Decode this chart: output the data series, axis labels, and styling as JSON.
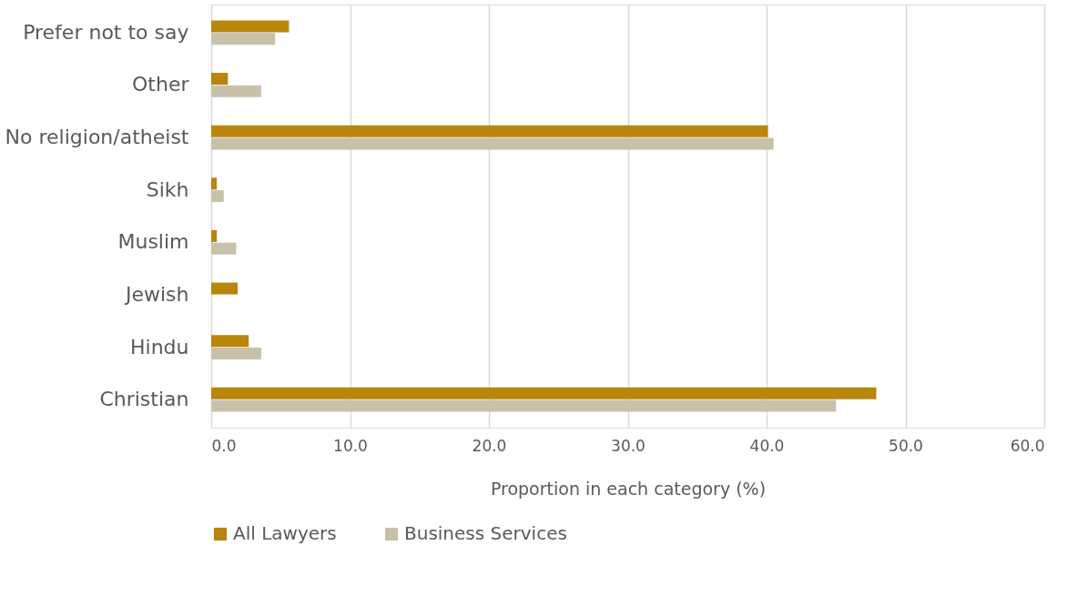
{
  "chart_data": {
    "type": "bar",
    "orientation": "horizontal",
    "xlabel": "Proportion in each category (%)",
    "categories": [
      "Prefer not to say",
      "Other",
      "No religion/atheist",
      "Sikh",
      "Muslim",
      "Jewish",
      "Hindu",
      "Christian"
    ],
    "series": [
      {
        "name": "All Lawyers",
        "color": "#b8860b",
        "values": [
          5.6,
          1.2,
          40.1,
          0.4,
          0.4,
          1.9,
          2.7,
          47.9
        ]
      },
      {
        "name": "Business Services",
        "color": "#c9c0aa",
        "values": [
          4.6,
          3.6,
          40.5,
          0.9,
          1.8,
          0,
          3.6,
          45.0
        ]
      }
    ],
    "xlim": [
      0,
      60
    ],
    "xticks": [
      {
        "value": 0,
        "label": "0.0"
      },
      {
        "value": 10,
        "label": "10.0"
      },
      {
        "value": 20,
        "label": "20.0"
      },
      {
        "value": 30,
        "label": "30.0"
      },
      {
        "value": 40,
        "label": "40.0"
      },
      {
        "value": 50,
        "label": "50.0"
      },
      {
        "value": 60,
        "label": "60.0"
      }
    ],
    "grid": "x",
    "legend": "bottom"
  }
}
